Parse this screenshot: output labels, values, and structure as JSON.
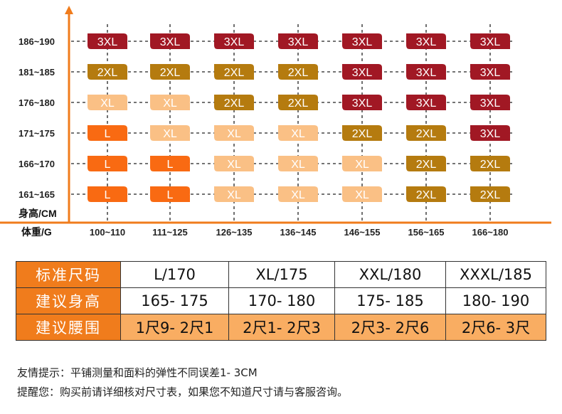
{
  "chart_data": {
    "type": "table",
    "y_axis_label": "身高/CM",
    "x_axis_label": "体重/G",
    "y_categories": [
      "186~190",
      "181~185",
      "176~180",
      "171~175",
      "166~170",
      "161~165"
    ],
    "x_categories": [
      "100~110",
      "111~125",
      "126~135",
      "136~145",
      "146~155",
      "156~165",
      "166~180"
    ],
    "cells": [
      [
        "3XL",
        "3XL",
        "3XL",
        "3XL",
        "3XL",
        "3XL",
        "3XL"
      ],
      [
        "2XL",
        "2XL",
        "2XL",
        "2XL",
        "3XL",
        "3XL",
        "3XL"
      ],
      [
        "XL",
        "XL",
        "2XL",
        "2XL",
        "3XL",
        "3XL",
        "3XL"
      ],
      [
        "L",
        "XL",
        "XL",
        "XL",
        "2XL",
        "2XL",
        "3XL"
      ],
      [
        "L",
        "L",
        "XL",
        "XL",
        "XL",
        "2XL",
        "2XL"
      ],
      [
        "L",
        "L",
        "XL",
        "XL",
        "XL",
        "2XL",
        "2XL"
      ]
    ],
    "size_colors": {
      "L": "#f96a12",
      "XL": "#fac085",
      "2XL": "#b57b0f",
      "3XL": "#a11824"
    },
    "axis_color": "#f07c1c",
    "grid": "dashed"
  },
  "size_table": {
    "header_color": "#f07c1c",
    "rows": [
      {
        "label": "标准尺码",
        "values": [
          "L/170",
          "XL/175",
          "XXL/180",
          "XXXL/185"
        ]
      },
      {
        "label": "建议身高",
        "values": [
          "165- 175",
          "170- 180",
          "175- 185",
          "180- 190"
        ]
      },
      {
        "label": "建议腰围",
        "values": [
          "1尺9- 2尺1",
          "2尺1- 2尺3",
          "2尺3- 2尺6",
          "2尺6- 3尺"
        ]
      }
    ]
  },
  "notes": {
    "line1": "友情提示：平铺测量和面料的弹性不同误差1- 3CM",
    "line2": "提醒您：购买前请详细核对尺寸表，如果您不知道尺寸请与客服咨询。"
  }
}
